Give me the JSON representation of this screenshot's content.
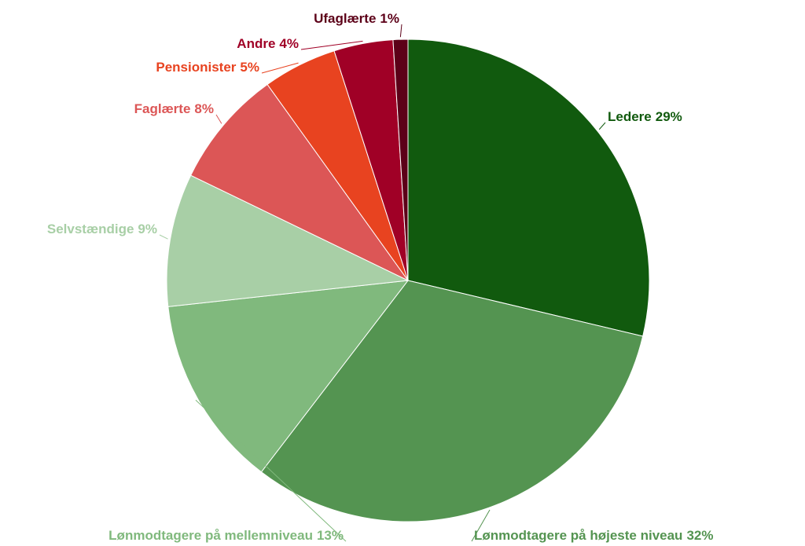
{
  "chart_data": {
    "type": "pie",
    "categories": [
      "Ledere",
      "Lønmodtagere på højeste niveau",
      "Lønmodtagere på mellemniveau",
      "Selvstændige",
      "Faglærte",
      "Pensionister",
      "Andre",
      "Ufaglærte"
    ],
    "values": [
      29,
      32,
      13,
      9,
      8,
      5,
      4,
      1
    ],
    "value_labels": [
      "29%",
      "32%",
      "13%",
      "9%",
      "8%",
      "5%",
      "4%",
      "1%"
    ],
    "colors": [
      "#115a0e",
      "#549451",
      "#80b97d",
      "#a8cfa6",
      "#dc5656",
      "#e84320",
      "#a00026",
      "#5c0018"
    ]
  }
}
